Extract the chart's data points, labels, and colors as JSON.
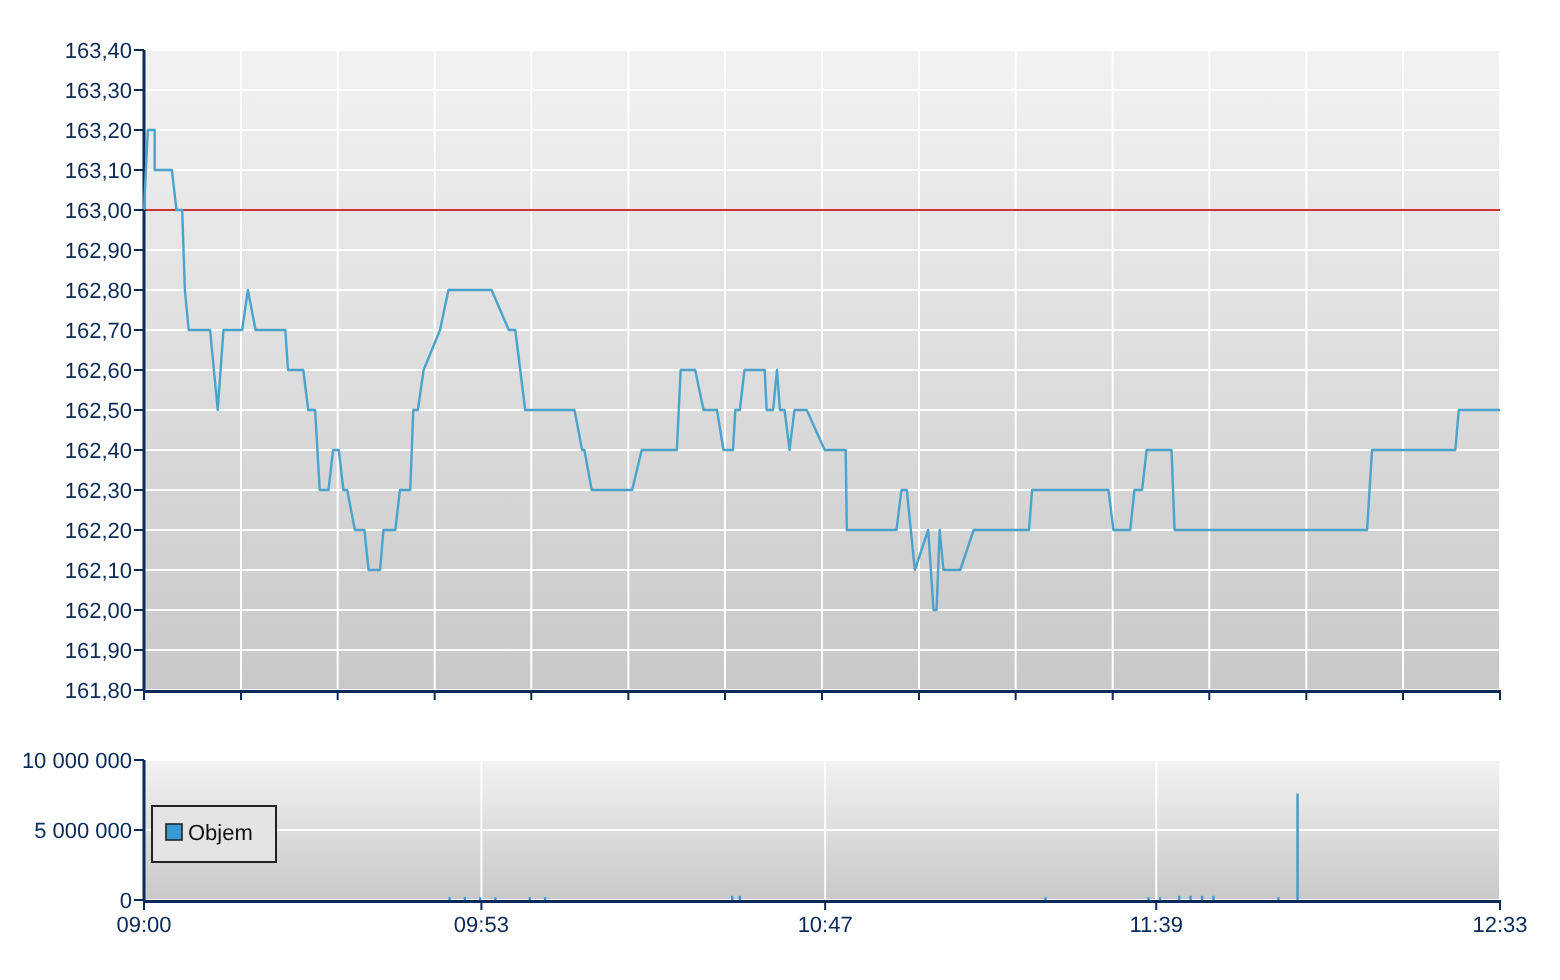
{
  "chart_data": [
    {
      "type": "line",
      "x": [
        9.0,
        9.01,
        9.028,
        9.028,
        9.073,
        9.085,
        9.1,
        9.107,
        9.117,
        9.173,
        9.193,
        9.208,
        9.257,
        9.272,
        9.292,
        9.37,
        9.377,
        9.417,
        9.43,
        9.448,
        9.46,
        9.483,
        9.495,
        9.51,
        9.522,
        9.532,
        9.552,
        9.577,
        9.588,
        9.618,
        9.627,
        9.658,
        9.67,
        9.697,
        9.705,
        9.717,
        9.732,
        9.775,
        9.797,
        9.91,
        9.955,
        9.972,
        9.998,
        10.127,
        10.147,
        10.153,
        10.172,
        10.278,
        10.303,
        10.395,
        10.405,
        10.443,
        10.465,
        10.5,
        10.517,
        10.542,
        10.548,
        10.56,
        10.572,
        10.625,
        10.63,
        10.647,
        10.657,
        10.665,
        10.677,
        10.69,
        10.703,
        10.735,
        10.782,
        10.837,
        10.84,
        10.97,
        10.983,
        10.997,
        11.018,
        11.053,
        11.067,
        11.075,
        11.083,
        11.093,
        11.137,
        11.172,
        11.317,
        11.325,
        11.525,
        11.538,
        11.582,
        11.593,
        11.613,
        11.625,
        11.69,
        11.698,
        12.202,
        12.215,
        12.433,
        12.442,
        12.55
      ],
      "series": [
        {
          "color": "#4aa3cc",
          "values": [
            163.0,
            163.2,
            163.2,
            163.1,
            163.1,
            163.0,
            163.0,
            162.8,
            162.7,
            162.7,
            162.5,
            162.7,
            162.7,
            162.8,
            162.7,
            162.7,
            162.6,
            162.6,
            162.5,
            162.5,
            162.3,
            162.3,
            162.4,
            162.4,
            162.3,
            162.3,
            162.2,
            162.2,
            162.1,
            162.1,
            162.2,
            162.2,
            162.3,
            162.3,
            162.5,
            162.5,
            162.6,
            162.7,
            162.8,
            162.8,
            162.7,
            162.7,
            162.5,
            162.5,
            162.4,
            162.4,
            162.3,
            162.3,
            162.4,
            162.4,
            162.6,
            162.6,
            162.5,
            162.5,
            162.4,
            162.4,
            162.5,
            162.5,
            162.6,
            162.6,
            162.5,
            162.5,
            162.6,
            162.5,
            162.5,
            162.4,
            162.5,
            162.5,
            162.4,
            162.4,
            162.2,
            162.2,
            162.3,
            162.3,
            162.1,
            162.2,
            162.0,
            162.0,
            162.2,
            162.1,
            162.1,
            162.2,
            162.2,
            162.3,
            162.3,
            162.2,
            162.2,
            162.3,
            162.3,
            162.4,
            162.4,
            162.2,
            162.2,
            162.4,
            162.4,
            162.5,
            162.5
          ]
        }
      ],
      "xlim": [
        9,
        12.55
      ],
      "xticks": [
        {
          "value": 9,
          "label": null
        },
        {
          "value": 9.254,
          "label": null
        },
        {
          "value": 9.507,
          "label": null
        },
        {
          "value": 9.761,
          "label": null
        },
        {
          "value": 10.014,
          "label": null
        },
        {
          "value": 10.268,
          "label": null
        },
        {
          "value": 10.521,
          "label": null
        },
        {
          "value": 10.775,
          "label": null
        },
        {
          "value": 11.029,
          "label": null
        },
        {
          "value": 11.282,
          "label": null
        },
        {
          "value": 11.536,
          "label": null
        },
        {
          "value": 11.789,
          "label": null
        },
        {
          "value": 12.043,
          "label": null
        },
        {
          "value": 12.296,
          "label": null
        },
        {
          "value": 12.55,
          "label": null
        }
      ],
      "ylim": [
        161.8,
        163.4
      ],
      "yticks": [
        {
          "value": 161.8,
          "label": "161,80"
        },
        {
          "value": 161.9,
          "label": "161,90"
        },
        {
          "value": 162.0,
          "label": "162,00"
        },
        {
          "value": 162.1,
          "label": "162,10"
        },
        {
          "value": 162.2,
          "label": "162,20"
        },
        {
          "value": 162.3,
          "label": "162,30"
        },
        {
          "value": 162.4,
          "label": "162,40"
        },
        {
          "value": 162.5,
          "label": "162,50"
        },
        {
          "value": 162.6,
          "label": "162,60"
        },
        {
          "value": 162.7,
          "label": "162,70"
        },
        {
          "value": 162.8,
          "label": "162,80"
        },
        {
          "value": 162.9,
          "label": "162,90"
        },
        {
          "value": 163.0,
          "label": "163,00"
        },
        {
          "value": 163.1,
          "label": "163,10"
        },
        {
          "value": 163.2,
          "label": "163,20"
        },
        {
          "value": 163.3,
          "label": "163,30"
        },
        {
          "value": 163.4,
          "label": "163,40"
        }
      ],
      "ref_lines": [
        {
          "axis": "y",
          "value": 163,
          "color": "#cc3333"
        }
      ],
      "grid": true,
      "tick_labels": "y",
      "legend": false
    },
    {
      "type": "bar",
      "x": [
        9.8,
        9.84,
        9.88,
        9.92,
        10.01,
        10.05,
        10.54,
        10.56,
        11.36,
        11.63,
        11.66,
        11.71,
        11.74,
        11.77,
        11.8,
        11.97,
        12.02
      ],
      "series": [
        {
          "name": "Objem",
          "color": "#3a9ad6",
          "values": [
            200000,
            200000,
            200000,
            200000,
            200000,
            200000,
            300000,
            300000,
            200000,
            200000,
            200000,
            300000,
            300000,
            300000,
            300000,
            200000,
            7600000
          ]
        }
      ],
      "xlim": [
        9,
        12.55
      ],
      "xticks": [
        {
          "value": 9,
          "label": "09:00"
        },
        {
          "value": 9.8833,
          "label": "09:53"
        },
        {
          "value": 10.7833,
          "label": "10:47"
        },
        {
          "value": 11.65,
          "label": "11:39"
        },
        {
          "value": 12.55,
          "label": "12:33"
        }
      ],
      "ylim": [
        0,
        10000000
      ],
      "yticks": [
        {
          "value": 0,
          "label": "0"
        },
        {
          "value": 5000000,
          "label": "5 000 000"
        },
        {
          "value": 10000000,
          "label": "10 000 000"
        }
      ],
      "grid": true,
      "legend": "left"
    }
  ]
}
